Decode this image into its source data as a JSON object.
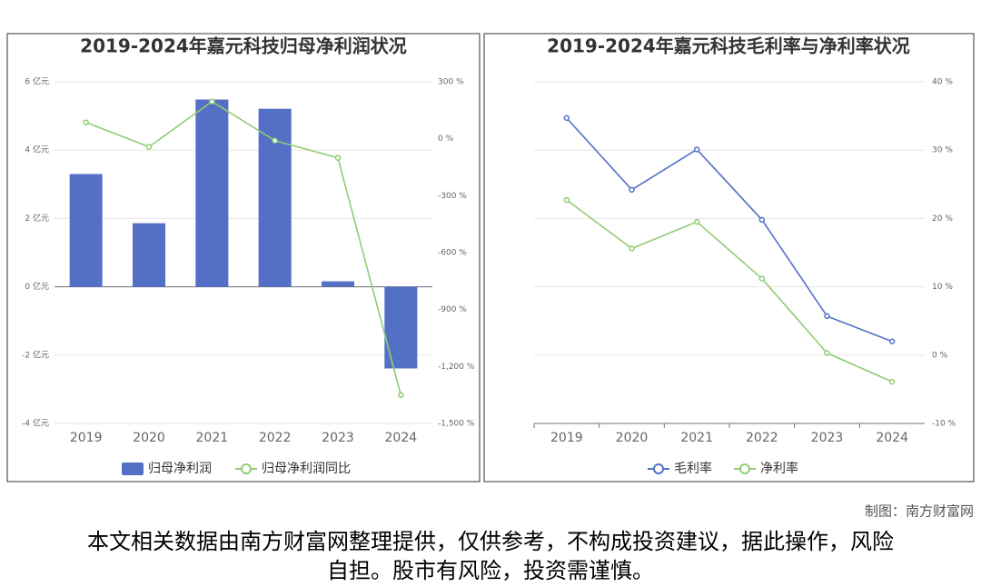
{
  "chart_data": [
    {
      "type": "bar",
      "title": "2019-2024年嘉元科技归母净利润状况",
      "categories": [
        "2019",
        "2020",
        "2021",
        "2022",
        "2023",
        "2024"
      ],
      "series": [
        {
          "name": "归母净利润",
          "type": "bar",
          "axis": "y",
          "color": "#5470c6",
          "values": [
            3.3,
            1.86,
            5.48,
            5.21,
            0.16,
            -2.39
          ]
        },
        {
          "name": "归母净利润同比",
          "type": "line",
          "axis": "y2",
          "color": "#91cc75",
          "values": [
            86,
            -43,
            196,
            -10,
            -101,
            -1351
          ]
        }
      ],
      "ylim": [
        -4,
        6
      ],
      "yticks": [
        {
          "value": -4,
          "label": "-4 亿元"
        },
        {
          "value": -2,
          "label": "-2 亿元"
        },
        {
          "value": 0,
          "label": "0 亿元"
        },
        {
          "value": 2,
          "label": "2 亿元"
        },
        {
          "value": 4,
          "label": "4 亿元"
        },
        {
          "value": 6,
          "label": "6 亿元"
        }
      ],
      "y2lim": [
        -1500,
        300
      ],
      "y2ticks": [
        {
          "value": -1500,
          "label": "-1,500 %"
        },
        {
          "value": -1200,
          "label": "-1,200 %"
        },
        {
          "value": -900,
          "label": "-900 %"
        },
        {
          "value": -600,
          "label": "-600 %"
        },
        {
          "value": -300,
          "label": "-300 %"
        },
        {
          "value": 0,
          "label": "0 %"
        },
        {
          "value": 300,
          "label": "300 %"
        }
      ],
      "grid": true
    },
    {
      "type": "line",
      "title": "2019-2024年嘉元科技毛利率与净利率状况",
      "categories": [
        "2019",
        "2020",
        "2021",
        "2022",
        "2023",
        "2024"
      ],
      "series": [
        {
          "name": "毛利率",
          "type": "line",
          "axis": "y",
          "color": "#5470c6",
          "values": [
            34.7,
            24.2,
            30.1,
            19.8,
            5.7,
            2.0
          ]
        },
        {
          "name": "净利率",
          "type": "line",
          "axis": "y",
          "color": "#91cc75",
          "values": [
            22.7,
            15.6,
            19.5,
            11.2,
            0.3,
            -3.9
          ]
        }
      ],
      "ylim": [
        -10,
        40
      ],
      "yticks": [
        {
          "value": -10,
          "label": "-10 %"
        },
        {
          "value": 0,
          "label": "0 %"
        },
        {
          "value": 10,
          "label": "10 %"
        },
        {
          "value": 20,
          "label": "20 %"
        },
        {
          "value": 30,
          "label": "30 %"
        },
        {
          "value": 40,
          "label": "40 %"
        }
      ],
      "grid": true
    }
  ],
  "source": "制图：南方财富网",
  "disclaimer": "本文相关数据由南方财富网整理提供，仅供参考，不构成投资建议，据此操作，风险自担。股市有风险，投资需谨慎。"
}
